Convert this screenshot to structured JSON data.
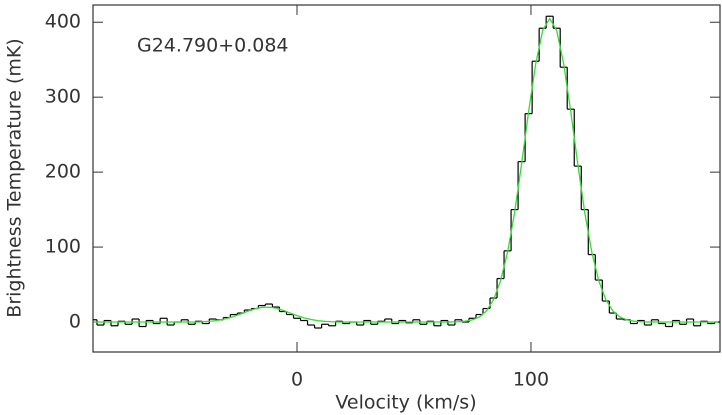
{
  "chart_data": {
    "type": "step",
    "annotation": "G24.790+0.084",
    "xlabel": "Velocity (km/s)",
    "ylabel": "Brightness Temperature (mK)",
    "xlim": [
      -87.2,
      180.8
    ],
    "ylim": [
      -40,
      423
    ],
    "xticks": [
      0,
      100
    ],
    "yticks": [
      0,
      100,
      200,
      300,
      400
    ],
    "x": [
      -87,
      -84,
      -81,
      -78,
      -75,
      -72,
      -69,
      -66,
      -63,
      -60,
      -57,
      -54,
      -51,
      -48,
      -45,
      -42,
      -39,
      -36,
      -33,
      -30,
      -27,
      -24,
      -21,
      -18,
      -15,
      -12,
      -9,
      -6,
      -3,
      0,
      3,
      6,
      9,
      12,
      15,
      18,
      21,
      24,
      27,
      30,
      33,
      36,
      39,
      42,
      45,
      48,
      51,
      54,
      57,
      60,
      63,
      66,
      69,
      72,
      75,
      78,
      81,
      84,
      87,
      90,
      93,
      96,
      99,
      102,
      105,
      108,
      111,
      114,
      117,
      120,
      123,
      126,
      129,
      132,
      135,
      138,
      141,
      144,
      147,
      150,
      153,
      156,
      159,
      162,
      165,
      168,
      171,
      174,
      177,
      180
    ],
    "series": [
      {
        "color": "#000000",
        "step": true,
        "values": [
          3,
          -4,
          2,
          -5,
          1,
          -3,
          4,
          -6,
          2,
          -2,
          5,
          -4,
          0,
          3,
          -3,
          1,
          -2,
          4,
          3,
          6,
          10,
          12,
          16,
          18,
          22,
          24,
          20,
          14,
          10,
          5,
          2,
          -4,
          -8,
          -3,
          -5,
          1,
          -2,
          0,
          -4,
          2,
          -3,
          1,
          4,
          -2,
          2,
          -1,
          3,
          -3,
          1,
          -5,
          2,
          -4,
          3,
          0,
          5,
          10,
          18,
          32,
          58,
          95,
          150,
          214,
          278,
          348,
          392,
          408,
          392,
          340,
          284,
          208,
          150,
          90,
          56,
          28,
          12,
          4,
          3,
          -2,
          2,
          -4,
          3,
          -2,
          -6,
          2,
          -3,
          4,
          -5,
          1,
          -2,
          0
        ]
      },
      {
        "color": "#33dd33",
        "values": [
          0,
          0,
          0,
          0,
          0,
          0,
          0,
          0,
          0,
          0,
          0,
          0,
          0,
          0,
          0,
          0,
          0.7,
          1.4,
          2.7,
          4.7,
          7.5,
          10.9,
          14.5,
          17.6,
          19.6,
          19.9,
          18.5,
          15.7,
          12.1,
          8.6,
          5.6,
          3.3,
          1.8,
          0.9,
          0.4,
          0,
          0,
          0,
          0,
          0,
          0,
          0,
          0,
          0,
          0,
          0,
          0,
          0,
          0,
          0,
          0,
          0.1,
          0.4,
          1.1,
          2.9,
          6.8,
          14.9,
          29.7,
          54.8,
          93.2,
          146,
          211,
          281,
          344,
          389,
          405,
          389,
          344,
          281,
          211,
          146,
          93.2,
          54.8,
          29.7,
          14.9,
          6.8,
          2.9,
          1.1,
          0.4,
          0.1,
          0,
          0,
          0,
          0,
          0,
          0,
          0,
          0,
          0,
          0
        ]
      }
    ]
  }
}
